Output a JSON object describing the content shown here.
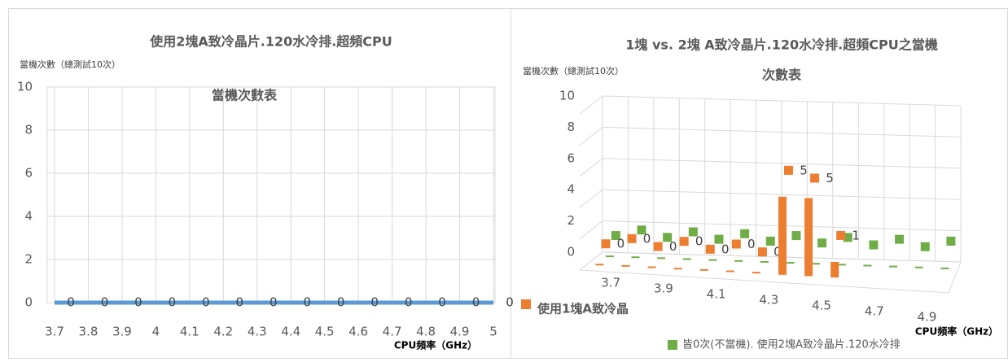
{
  "chart_data": [
    {
      "type": "line",
      "title": [
        "使用2塊A致冷晶片.120水冷排.超頻CPU",
        "當機次數表"
      ],
      "y_label": "當機次數（總測試10次）",
      "x_label": "CPU頻率（GHz）",
      "categories": [
        "3.7",
        "3.8",
        "3.9",
        "4",
        "4.1",
        "4.2",
        "4.3",
        "4.4",
        "4.5",
        "4.6",
        "4.7",
        "4.8",
        "4.9",
        "5"
      ],
      "values": [
        0,
        0,
        0,
        0,
        0,
        0,
        0,
        0,
        0,
        0,
        0,
        0,
        0,
        0
      ],
      "color": "#5b9bd5",
      "ylim": [
        0,
        10
      ],
      "yticks": [
        0,
        2,
        4,
        6,
        8,
        10
      ],
      "grid": true
    },
    {
      "type": "bar3d",
      "title": [
        "1塊 vs. 2塊 A致冷晶片.120水冷排.超頻CPU之當機",
        "次數表"
      ],
      "y_label": "當機次數（總測試10次）",
      "x_label": "CPU頻率（GHz）",
      "categories": [
        "3.7",
        null,
        "3.9",
        null,
        "4.1",
        null,
        "4.3",
        null,
        "4.5",
        null,
        "4.7",
        null,
        "4.9",
        null
      ],
      "series": [
        {
          "name": "使用1塊A致冷晶",
          "color": "#ed7d31",
          "values": [
            0,
            0,
            0,
            0,
            0,
            0,
            0,
            5,
            5,
            1,
            null,
            null,
            null,
            null
          ]
        },
        {
          "name": "皆0次(不當機). 使用2塊A致冷晶片.120水冷排",
          "color": "#70ad47",
          "values": [
            0,
            0,
            0,
            0,
            0,
            0,
            0,
            0,
            0,
            0,
            0,
            0,
            0,
            0
          ]
        }
      ],
      "ylim": [
        0,
        10
      ],
      "yticks": [
        0,
        2,
        4,
        6,
        8,
        10
      ],
      "grid": true
    }
  ]
}
